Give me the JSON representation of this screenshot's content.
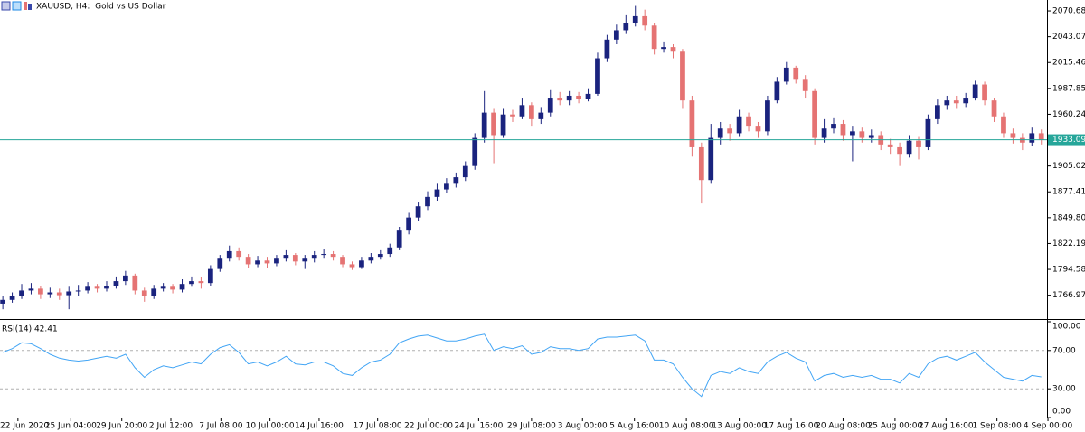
{
  "chart_data": {
    "type": "candlestick",
    "title": "XAUUSD, H4:  Gold vs US Dollar",
    "open": [
      1758,
      1762,
      1766,
      1772,
      1774,
      1768,
      1770,
      1767,
      1771,
      1772,
      1776,
      1774,
      1777,
      1782,
      1788,
      1772,
      1766,
      1774,
      1776,
      1773,
      1779,
      1782,
      1780,
      1795,
      1806,
      1814,
      1808,
      1800,
      1804,
      1801,
      1806,
      1810,
      1803,
      1806,
      1810,
      1811,
      1808,
      1800,
      1797,
      1804,
      1808,
      1811,
      1818,
      1836,
      1850,
      1862,
      1872,
      1880,
      1886,
      1893,
      1905,
      1935,
      1962,
      1938,
      1960,
      1958,
      1970,
      1955,
      1962,
      1978,
      1975,
      1980,
      1977,
      1982,
      2020,
      2040,
      2050,
      2058,
      2065,
      2055,
      2030,
      2032,
      2028,
      1975,
      1925,
      1890,
      1935,
      1945,
      1940,
      1958,
      1948,
      1942,
      1975,
      1995,
      2010,
      1998,
      1985,
      1935,
      1945,
      1950,
      1938,
      1942,
      1935,
      1938,
      1928,
      1925,
      1918,
      1932,
      1925,
      1955,
      1970,
      1975,
      1972,
      1978,
      1992,
      1975,
      1958,
      1940,
      1935,
      1930,
      1940
    ],
    "high": [
      1766,
      1770,
      1779,
      1780,
      1777,
      1775,
      1774,
      1776,
      1778,
      1781,
      1779,
      1782,
      1787,
      1793,
      1790,
      1775,
      1778,
      1780,
      1779,
      1784,
      1787,
      1786,
      1799,
      1810,
      1820,
      1818,
      1811,
      1809,
      1808,
      1810,
      1815,
      1812,
      1810,
      1814,
      1816,
      1814,
      1810,
      1803,
      1808,
      1812,
      1815,
      1822,
      1840,
      1855,
      1866,
      1878,
      1886,
      1892,
      1898,
      1910,
      1940,
      1985,
      1966,
      1966,
      1965,
      1978,
      1973,
      1968,
      1986,
      1984,
      1985,
      1984,
      1988,
      2026,
      2045,
      2056,
      2066,
      2076,
      2072,
      2058,
      2038,
      2035,
      2030,
      1980,
      1930,
      1950,
      1952,
      1950,
      1965,
      1962,
      1952,
      1980,
      2000,
      2016,
      2012,
      2002,
      1988,
      1955,
      1956,
      1954,
      1948,
      1946,
      1944,
      1942,
      1934,
      1930,
      1938,
      1936,
      1960,
      1976,
      1980,
      1980,
      1983,
      1996,
      1995,
      1978,
      1962,
      1945,
      1940,
      1946,
      1944
    ],
    "low": [
      1752,
      1759,
      1763,
      1768,
      1763,
      1764,
      1762,
      1752,
      1766,
      1769,
      1770,
      1771,
      1774,
      1778,
      1768,
      1760,
      1763,
      1771,
      1769,
      1770,
      1776,
      1774,
      1777,
      1792,
      1803,
      1804,
      1796,
      1797,
      1796,
      1798,
      1803,
      1799,
      1795,
      1802,
      1806,
      1804,
      1797,
      1794,
      1795,
      1801,
      1805,
      1808,
      1815,
      1832,
      1846,
      1858,
      1868,
      1876,
      1882,
      1889,
      1901,
      1930,
      1908,
      1935,
      1952,
      1955,
      1948,
      1950,
      1958,
      1970,
      1970,
      1972,
      1974,
      1980,
      2016,
      2035,
      2046,
      2054,
      2050,
      2024,
      2026,
      2020,
      1966,
      1915,
      1865,
      1886,
      1928,
      1932,
      1936,
      1942,
      1935,
      1938,
      1972,
      1992,
      1993,
      1978,
      1928,
      1930,
      1940,
      1932,
      1910,
      1930,
      1930,
      1922,
      1918,
      1905,
      1914,
      1912,
      1922,
      1950,
      1965,
      1966,
      1968,
      1975,
      1970,
      1952,
      1935,
      1929,
      1922,
      1926,
      1928
    ],
    "close": [
      1762,
      1766,
      1772,
      1774,
      1768,
      1770,
      1767,
      1771,
      1772,
      1776,
      1774,
      1777,
      1782,
      1788,
      1772,
      1766,
      1774,
      1776,
      1773,
      1779,
      1782,
      1780,
      1795,
      1806,
      1814,
      1808,
      1800,
      1804,
      1801,
      1806,
      1810,
      1803,
      1806,
      1810,
      1811,
      1808,
      1800,
      1797,
      1804,
      1808,
      1811,
      1818,
      1836,
      1850,
      1862,
      1872,
      1880,
      1886,
      1893,
      1905,
      1935,
      1962,
      1938,
      1960,
      1958,
      1970,
      1955,
      1962,
      1978,
      1975,
      1980,
      1977,
      1982,
      2020,
      2040,
      2050,
      2058,
      2065,
      2055,
      2030,
      2032,
      2028,
      1975,
      1925,
      1890,
      1935,
      1945,
      1940,
      1958,
      1948,
      1942,
      1975,
      1995,
      2010,
      1998,
      1985,
      1935,
      1945,
      1950,
      1938,
      1942,
      1935,
      1938,
      1928,
      1925,
      1918,
      1932,
      1925,
      1955,
      1970,
      1975,
      1972,
      1978,
      1992,
      1975,
      1958,
      1940,
      1935,
      1930,
      1940,
      1933.09
    ],
    "up_color": "#1a237e",
    "down_color": "#e57373",
    "ylim": [
      1742.5,
      2082.3
    ],
    "yticks": [
      2070.68,
      2043.07,
      2015.46,
      1987.85,
      1960.24,
      1905.02,
      1877.41,
      {
        "value": 1849.8,
        "label": "1849.80"
      },
      1822.19,
      1794.58,
      1766.97
    ],
    "xlim": [
      -0.3,
      110.6
    ],
    "xticks": [
      {
        "value": 1.6,
        "label": "22 Jun 2020"
      },
      {
        "value": 7.2,
        "label": "25 Jun 04:00"
      },
      {
        "value": 12.6,
        "label": "29 Jun 20:00"
      },
      {
        "value": 17.8,
        "label": "2 Jul 12:00"
      },
      {
        "value": 23.1,
        "label": "7 Jul 08:00"
      },
      {
        "value": 28.3,
        "label": "10 Jul 00:00"
      },
      {
        "value": 33.5,
        "label": "14 Jul 16:00"
      },
      {
        "value": 39.7,
        "label": "17 Jul 08:00"
      },
      {
        "value": 45.1,
        "label": "22 Jul 00:00"
      },
      {
        "value": 50.4,
        "label": "24 Jul 16:00"
      },
      {
        "value": 56.0,
        "label": "29 Jul 08:00"
      },
      {
        "value": 61.4,
        "label": "3 Aug 00:00"
      },
      {
        "value": 66.9,
        "label": "5 Aug 16:00"
      },
      {
        "value": 72.4,
        "label": "10 Aug 08:00"
      },
      {
        "value": 78.0,
        "label": "13 Aug 00:00"
      },
      {
        "value": 83.5,
        "label": "17 Aug 16:00"
      },
      {
        "value": 89.0,
        "label": "20 Aug 08:00"
      },
      {
        "value": 94.5,
        "label": "25 Aug 00:00"
      },
      {
        "value": 99.9,
        "label": "27 Aug 16:00"
      },
      {
        "value": 105.3,
        "label": "1 Sep 08:00"
      },
      {
        "value": 110.7,
        "label": "4 Sep 00:00"
      }
    ],
    "current_price": 1933.09,
    "current_price_color": "#26a69a",
    "indicator": {
      "type": "line",
      "title": "RSI(14) 42.41",
      "values": [
        68,
        72,
        78,
        77,
        72,
        66,
        62,
        60,
        59,
        60,
        62,
        64,
        62,
        66,
        52,
        42,
        50,
        54,
        52,
        55,
        58,
        56,
        66,
        73,
        76,
        68,
        56,
        58,
        54,
        58,
        64,
        56,
        55,
        58,
        58,
        54,
        46,
        44,
        52,
        58,
        60,
        66,
        78,
        82,
        85,
        86,
        83,
        80,
        80,
        82,
        85,
        87,
        70,
        74,
        72,
        75,
        66,
        68,
        74,
        72,
        72,
        70,
        72,
        82,
        84,
        84,
        85,
        86,
        80,
        60,
        60,
        56,
        42,
        30,
        22,
        44,
        48,
        46,
        52,
        48,
        46,
        58,
        64,
        68,
        62,
        58,
        38,
        44,
        46,
        42,
        44,
        42,
        44,
        40,
        40,
        36,
        46,
        42,
        56,
        62,
        64,
        60,
        64,
        68,
        58,
        50,
        42,
        40,
        38,
        44,
        42.41
      ],
      "color": "#42a5f5",
      "ylim": [
        0,
        100
      ],
      "yticks": [
        {
          "value": 100,
          "label": "100.00"
        },
        {
          "value": 70,
          "label": "70.00"
        },
        {
          "value": 30,
          "label": "30.00"
        },
        {
          "value": 0,
          "label": "0.00"
        }
      ],
      "levels": [
        70,
        30
      ]
    }
  }
}
